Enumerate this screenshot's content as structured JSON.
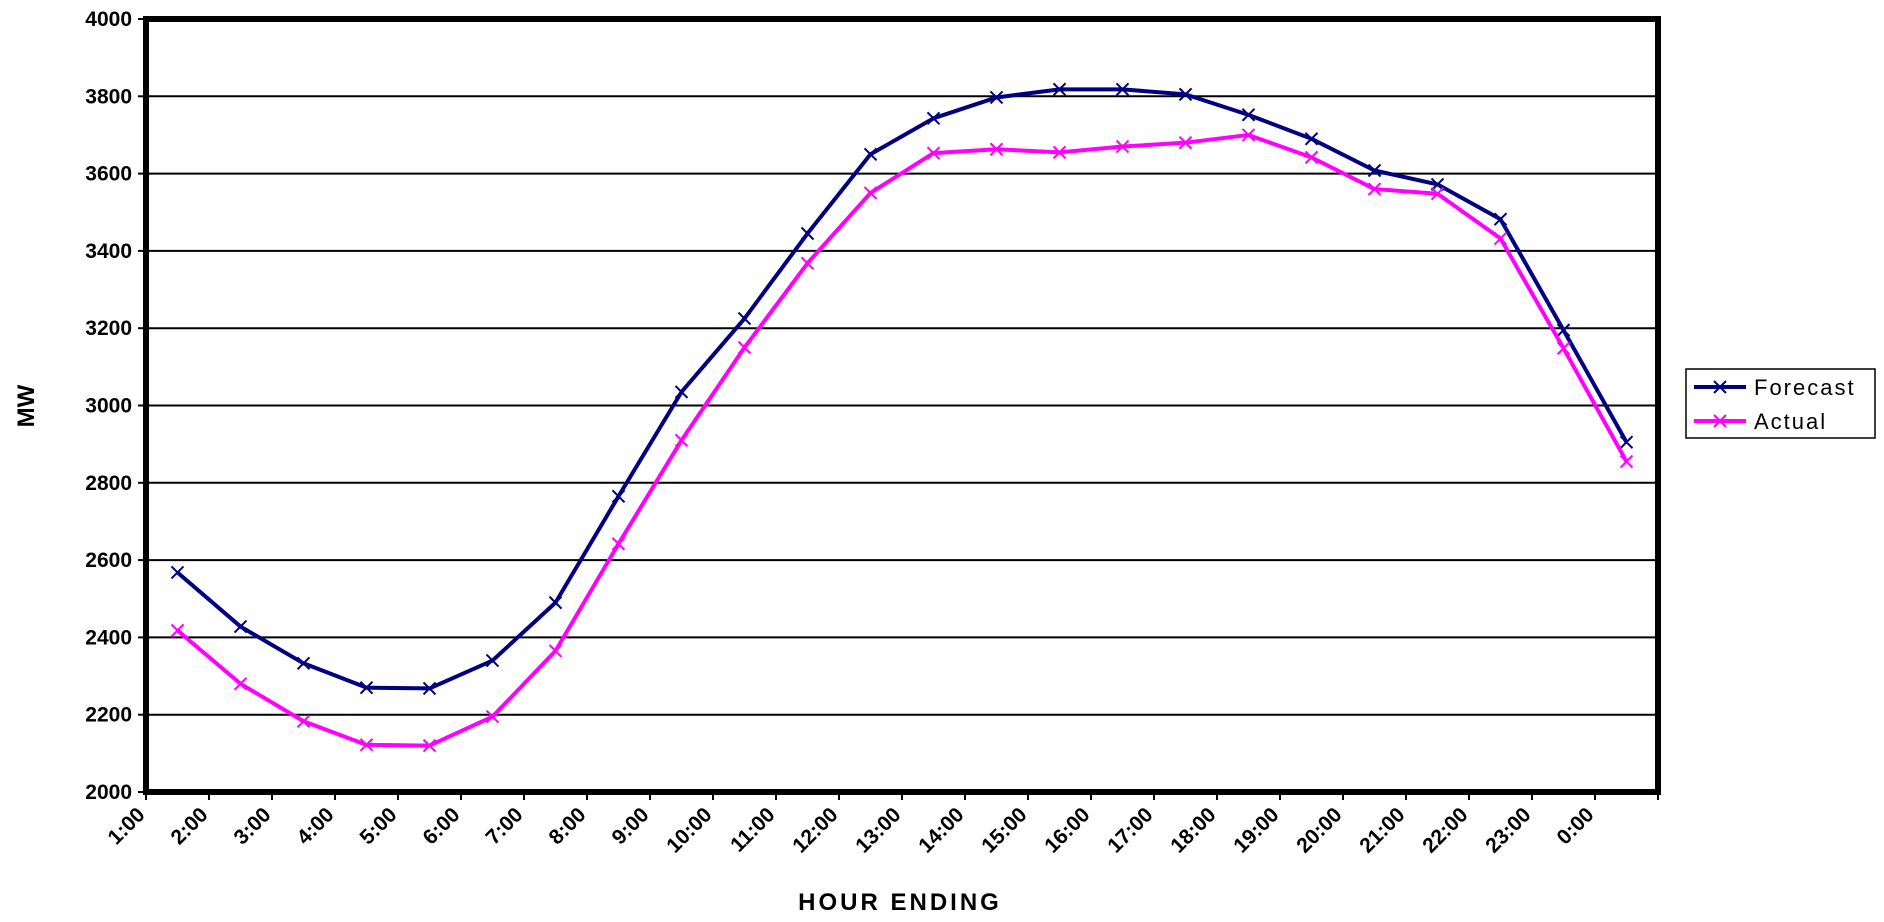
{
  "chart_data": {
    "type": "line",
    "title": "",
    "xlabel": "HOUR ENDING",
    "ylabel": "MW",
    "ylim": [
      2000,
      4000
    ],
    "y_ticks": [
      2000,
      2200,
      2400,
      2600,
      2800,
      3000,
      3200,
      3400,
      3600,
      3800,
      4000
    ],
    "categories": [
      "1:00",
      "2:00",
      "3:00",
      "4:00",
      "5:00",
      "6:00",
      "7:00",
      "8:00",
      "9:00",
      "10:00",
      "11:00",
      "12:00",
      "13:00",
      "14:00",
      "15:00",
      "16:00",
      "17:00",
      "18:00",
      "19:00",
      "20:00",
      "21:00",
      "22:00",
      "23:00",
      "0:00"
    ],
    "grid": true,
    "legend_position": "right",
    "series": [
      {
        "name": "Forecast",
        "color": "#000080",
        "marker": "x",
        "values": [
          2568,
          2428,
          2333,
          2270,
          2268,
          2340,
          2490,
          2765,
          3035,
          3225,
          3445,
          3650,
          3743,
          3797,
          3818,
          3818,
          3805,
          3752,
          3690,
          3608,
          3572,
          3482,
          3195,
          2905
        ]
      },
      {
        "name": "Actual",
        "color": "#FF00FF",
        "marker": "x",
        "values": [
          2418,
          2280,
          2183,
          2122,
          2120,
          2195,
          2365,
          2642,
          2910,
          3150,
          3368,
          3550,
          3653,
          3663,
          3655,
          3670,
          3680,
          3700,
          3642,
          3560,
          3548,
          3432,
          3148,
          2855
        ]
      }
    ]
  }
}
